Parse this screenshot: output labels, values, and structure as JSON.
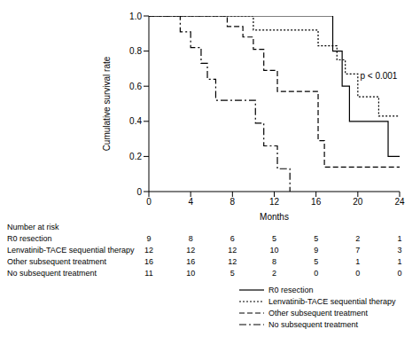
{
  "chart_data": {
    "type": "line",
    "ylabel": "Cumulative survival rate",
    "xlabel": "Months",
    "xlim": [
      0,
      24
    ],
    "xticks": [
      0,
      4,
      8,
      12,
      16,
      20,
      24
    ],
    "ylim": [
      0,
      1
    ],
    "yticks": [
      0,
      0.2,
      0.4,
      0.6,
      0.8,
      {
        "value": 1,
        "label": "1.0"
      }
    ],
    "grid": false,
    "annotations": [
      {
        "text": "p < 0.001",
        "x": 22,
        "y": 0.66
      }
    ],
    "series": [
      {
        "name": "R0 resection",
        "color": "#000000",
        "line_style": "solid",
        "x": [
          0,
          17.6,
          18.5,
          19.2,
          22.9,
          24
        ],
        "values": [
          1,
          0.8,
          0.6,
          0.4,
          0.2,
          0.2
        ]
      },
      {
        "name": "Lenvatinib-TACE sequential therapy",
        "color": "#000000",
        "line_style": "dotted",
        "x": [
          0,
          10,
          16.2,
          18,
          18.8,
          20,
          22,
          24
        ],
        "values": [
          1,
          0.92,
          0.83,
          0.75,
          0.67,
          0.54,
          0.43,
          0.43
        ]
      },
      {
        "name": "Other subsequent treatment",
        "color": "#000000",
        "line_style": "dashed",
        "x": [
          0,
          7.5,
          9,
          10,
          11,
          12.3,
          16.2,
          16.8,
          24
        ],
        "values": [
          1,
          0.94,
          0.88,
          0.81,
          0.69,
          0.57,
          0.29,
          0.14,
          0.14
        ]
      },
      {
        "name": "No subsequent treatment",
        "color": "#000000",
        "line_style": "dashdot",
        "x": [
          0,
          3,
          4,
          5,
          5.6,
          6.4,
          10.2,
          11,
          12.3,
          13.5
        ],
        "values": [
          1,
          0.91,
          0.82,
          0.73,
          0.64,
          0.52,
          0.39,
          0.26,
          0.13,
          0
        ]
      }
    ],
    "number_at_risk": {
      "title": "Number at risk",
      "rows": [
        {
          "name": "R0 resection",
          "values": [
            9,
            8,
            6,
            5,
            5,
            2,
            1
          ]
        },
        {
          "name": "Lenvatinib-TACE sequential therapy",
          "values": [
            12,
            12,
            12,
            10,
            9,
            7,
            3
          ]
        },
        {
          "name": "Other subsequent treatment",
          "values": [
            16,
            16,
            12,
            8,
            5,
            1,
            1
          ]
        },
        {
          "name": "No subsequent treatment",
          "values": [
            11,
            10,
            5,
            2,
            0,
            0,
            0
          ]
        }
      ]
    }
  }
}
